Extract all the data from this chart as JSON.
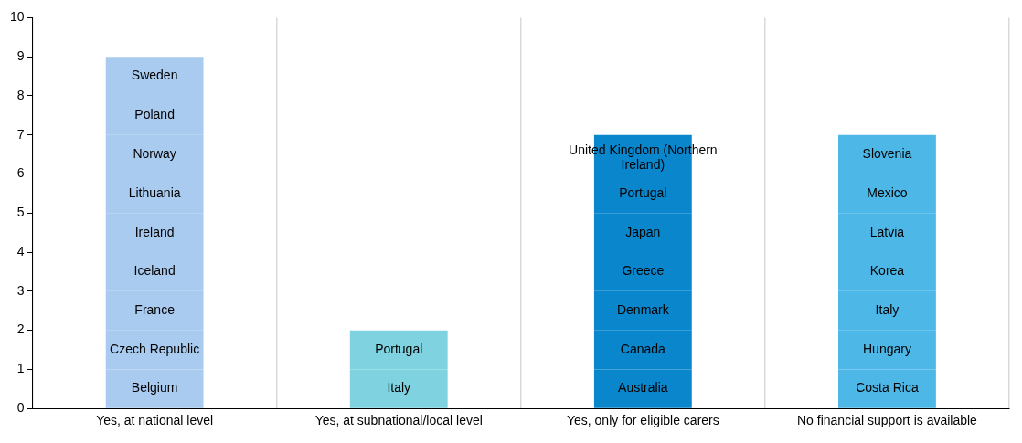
{
  "chart_data": {
    "type": "bar",
    "stacked": true,
    "categories": [
      "Yes, at national level",
      "Yes, at subnational/local level",
      "Yes, only for eligible carers",
      "No financial support is available"
    ],
    "series": [
      {
        "colors": [
          "#a9cbef",
          "#7fd3e0",
          "#0a86cc",
          "#4db8e8"
        ],
        "values": [
          1,
          1,
          1,
          1
        ],
        "value_labels": [
          "Belgium",
          "Italy",
          "Australia",
          "Costa Rica"
        ]
      },
      {
        "colors": [
          "#a9cbef",
          "#7fd3e0",
          "#0a86cc",
          "#4db8e8"
        ],
        "values": [
          1,
          1,
          1,
          1
        ],
        "value_labels": [
          "Czech Republic",
          "Portugal",
          "Canada",
          "Hungary"
        ]
      },
      {
        "colors": [
          "#a9cbef",
          "#7fd3e0",
          "#0a86cc",
          "#4db8e8"
        ],
        "values": [
          1,
          null,
          1,
          1
        ],
        "value_labels": [
          "France",
          null,
          "Denmark",
          "Italy"
        ]
      },
      {
        "colors": [
          "#a9cbef",
          "#7fd3e0",
          "#0a86cc",
          "#4db8e8"
        ],
        "values": [
          1,
          null,
          1,
          1
        ],
        "value_labels": [
          "Iceland",
          null,
          "Greece",
          "Korea"
        ]
      },
      {
        "colors": [
          "#a9cbef",
          "#7fd3e0",
          "#0a86cc",
          "#4db8e8"
        ],
        "values": [
          1,
          null,
          1,
          1
        ],
        "value_labels": [
          "Ireland",
          null,
          "Japan",
          "Latvia"
        ]
      },
      {
        "colors": [
          "#a9cbef",
          "#7fd3e0",
          "#0a86cc",
          "#4db8e8"
        ],
        "values": [
          1,
          null,
          1,
          1
        ],
        "value_labels": [
          "Lithuania",
          null,
          "Portugal",
          "Mexico"
        ]
      },
      {
        "colors": [
          "#a9cbef",
          "#7fd3e0",
          "#0a86cc",
          "#4db8e8"
        ],
        "values": [
          1,
          null,
          1,
          1
        ],
        "value_labels": [
          "Norway",
          null,
          "United Kingdom (Northern Ireland)",
          "Slovenia"
        ]
      },
      {
        "colors": [
          "#a9cbef",
          "#7fd3e0",
          "#0a86cc",
          "#4db8e8"
        ],
        "values": [
          1,
          null,
          null,
          null
        ],
        "value_labels": [
          "Poland",
          null,
          null,
          null
        ]
      },
      {
        "colors": [
          "#a9cbef",
          "#7fd3e0",
          "#0a86cc",
          "#4db8e8"
        ],
        "values": [
          1,
          null,
          null,
          null
        ],
        "value_labels": [
          "Sweden",
          null,
          null,
          null
        ]
      }
    ],
    "ylim": [
      0,
      10
    ],
    "yticks": [
      0,
      1,
      2,
      3,
      4,
      5,
      6,
      7,
      8,
      9,
      10
    ],
    "grid": "x",
    "legend": false
  }
}
